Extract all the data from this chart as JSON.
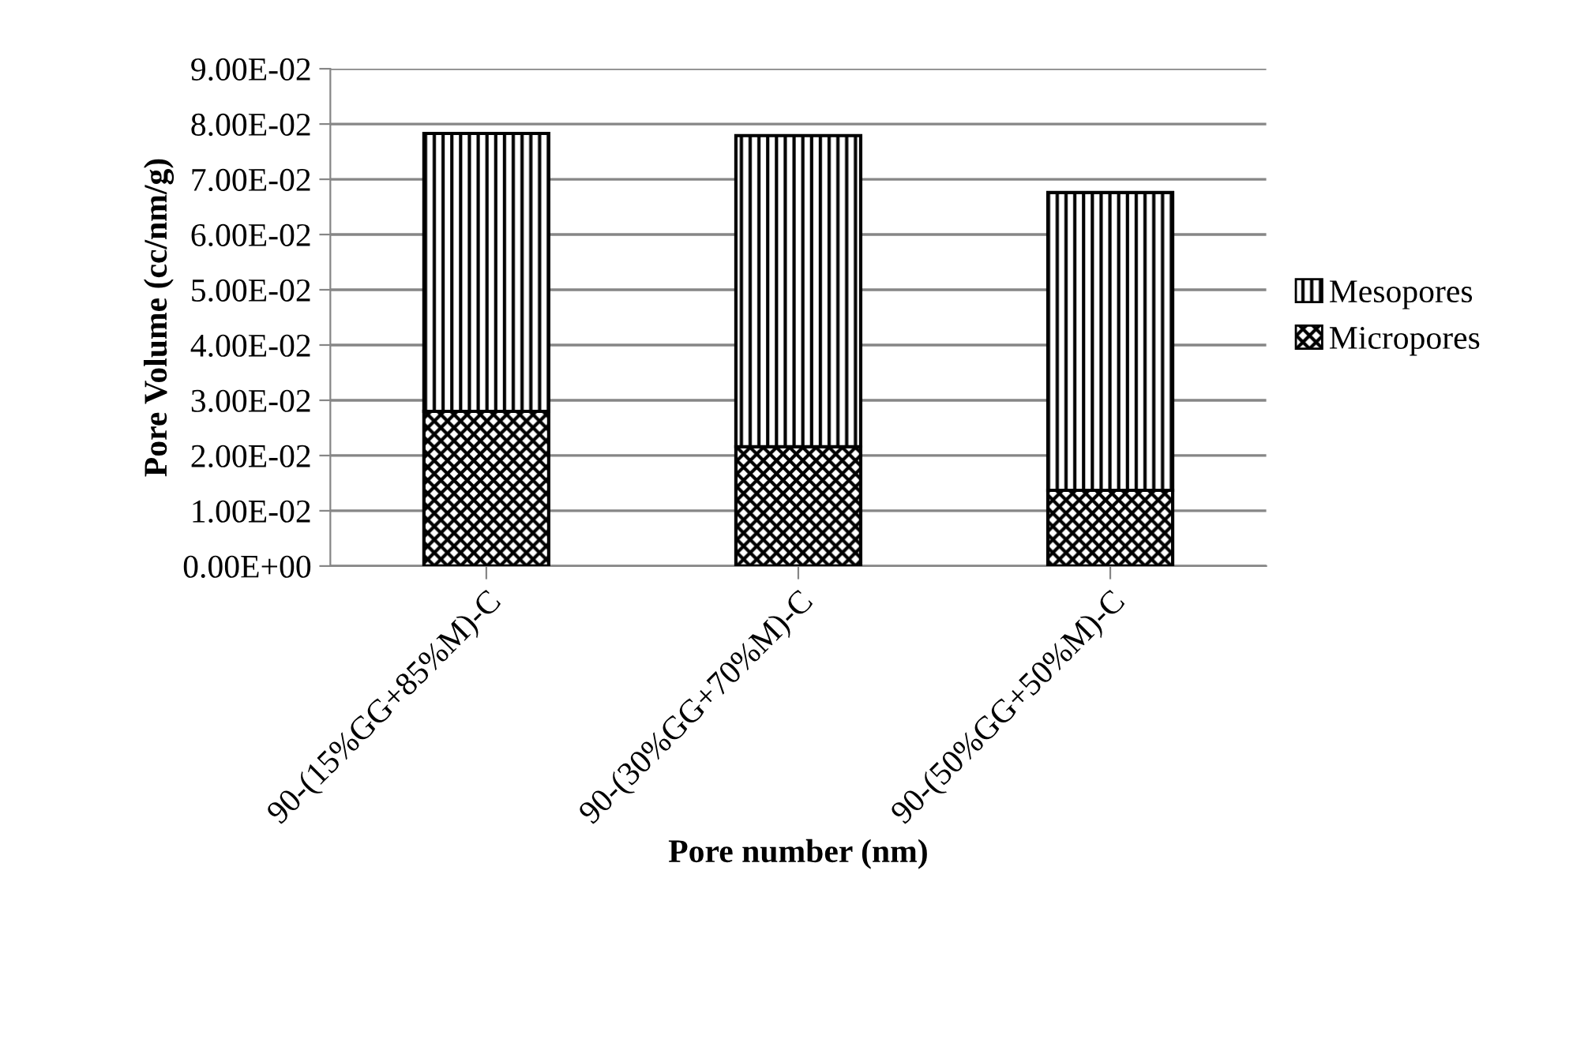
{
  "chart_data": {
    "type": "bar",
    "stacked": true,
    "xlabel": "Pore number (nm)",
    "ylabel": "Pore Volume (cc/nm/g)",
    "categories": [
      "90-(15%GG+85%M)-C",
      "90-(30%GG+70%M)-C",
      "90-(50%GG+50%M)-C"
    ],
    "series": [
      {
        "name": "Micropores",
        "color": "#000000",
        "values": [
          0.028,
          0.0216,
          0.0137
        ]
      },
      {
        "name": "Mesopores",
        "color": "#000000",
        "values": [
          0.0503,
          0.0563,
          0.0539
        ]
      }
    ],
    "ylim": [
      0,
      0.09
    ],
    "yticks": [
      {
        "value": 0,
        "label": "0.00E+00"
      },
      {
        "value": 0.01,
        "label": "1.00E-02"
      },
      {
        "value": 0.02,
        "label": "2.00E-02"
      },
      {
        "value": 0.03,
        "label": "3.00E-02"
      },
      {
        "value": 0.04,
        "label": "4.00E-02"
      },
      {
        "value": 0.05,
        "label": "5.00E-02"
      },
      {
        "value": 0.06,
        "label": "6.00E-02"
      },
      {
        "value": 0.07,
        "label": "7.00E-02"
      },
      {
        "value": 0.08,
        "label": "8.00E-02"
      },
      {
        "value": 0.09,
        "label": "9.00E-02"
      }
    ],
    "grid": "y",
    "legend": "right"
  }
}
